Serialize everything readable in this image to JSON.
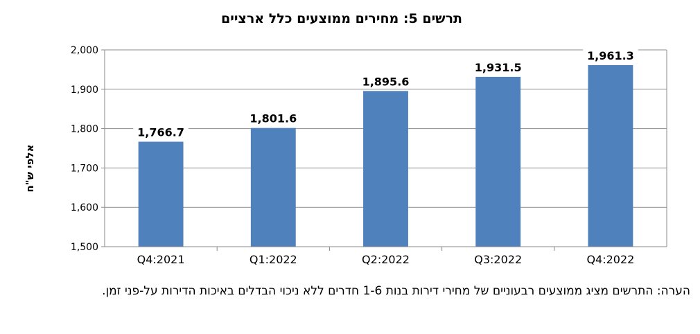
{
  "chart_data": {
    "type": "bar",
    "title": "תרשים 5: מחירים ממוצעים כלל ארציים",
    "ylabel": "אלפי ש\"ח",
    "xlabel": "",
    "categories": [
      "Q4:2021",
      "Q1:2022",
      "Q2:2022",
      "Q3:2022",
      "Q4:2022"
    ],
    "values": [
      1766.7,
      1801.6,
      1895.6,
      1931.5,
      1961.3
    ],
    "data_labels": [
      "1,766.7",
      "1,801.6",
      "1,895.6",
      "1,931.5",
      "1,961.3"
    ],
    "ylim": [
      1500,
      2000
    ],
    "yticks": [
      1500,
      1600,
      1700,
      1800,
      1900,
      2000
    ],
    "ytick_labels": [
      "1,500",
      "1,600",
      "1,700",
      "1,800",
      "1,900",
      "2,000"
    ],
    "grid": true,
    "bar_color": "#4f81bd"
  },
  "note": {
    "text": "הערה: התרשים מציג ממוצעים רבעוניים של מחירי דירות בנות 1-6 חדרים ללא ניכוי הבדלים באיכות הדירות על-פני זמן."
  }
}
